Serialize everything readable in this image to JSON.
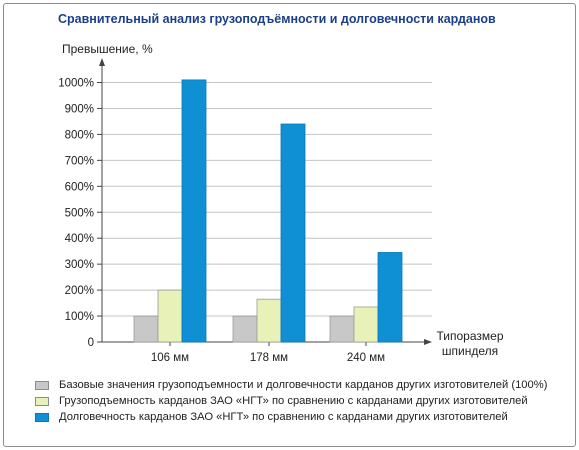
{
  "chart_data": {
    "type": "bar",
    "title": "Сравнительный анализ грузоподъёмности и долговечности карданов",
    "ylabel": "Превышение, %",
    "xlabel": "Типоразмер шпинделя",
    "xlabel_lines": [
      "Типоразмер",
      "шпинделя"
    ],
    "categories": [
      "106 мм",
      "178 мм",
      "240 мм"
    ],
    "ylim": [
      0,
      1100
    ],
    "ytick_values": [
      0,
      100,
      200,
      300,
      400,
      500,
      600,
      700,
      800,
      900,
      1000
    ],
    "ytick_labels": [
      "0",
      "100%",
      "200%",
      "300%",
      "400%",
      "500%",
      "600%",
      "700%",
      "800%",
      "900%",
      "1000%"
    ],
    "grid": "horizontal",
    "legend_position": "bottom",
    "series": [
      {
        "name": "Базовые значения грузоподъемности и долговечности карданов других изготовителей (100%)",
        "values": [
          100,
          100,
          100
        ],
        "color": "#c8c8c8"
      },
      {
        "name": "Грузоподъемность карданов ЗАО «НГТ» по сравнению с карданами других изготовителей",
        "values": [
          200,
          165,
          135
        ],
        "color": "#e8f2b8"
      },
      {
        "name": "Долговечность карданов ЗАО «НГТ» по сравнению с карданами других изготовителей",
        "values": [
          1010,
          840,
          345
        ],
        "color": "#0f8fd4"
      }
    ]
  }
}
